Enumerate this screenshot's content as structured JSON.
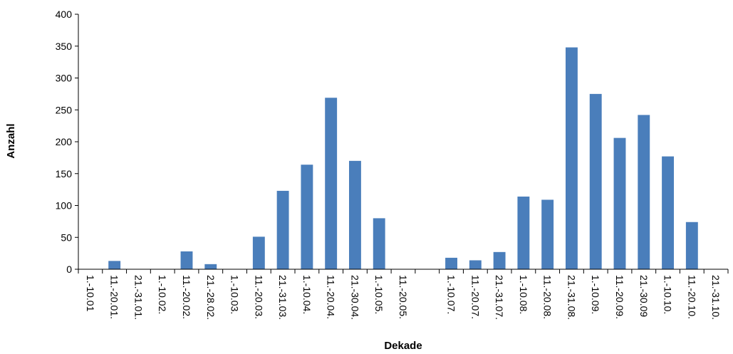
{
  "chart_data": {
    "type": "bar",
    "xlabel": "Dekade",
    "ylabel": "Anzahl",
    "ylim": [
      0,
      400
    ],
    "yticks": [
      0,
      50,
      100,
      150,
      200,
      250,
      300,
      350,
      400
    ],
    "grid": false,
    "legend": "none",
    "bar_color": "#4a7ebb",
    "categories": [
      "1.-10.01",
      "11.-20.01.",
      "21.-31.01.",
      "1.-10.02.",
      "11.-20.02.",
      "21.-28.02.",
      "1.-10.03.",
      "11.-20.03.",
      "21.-31.03.",
      "1.-10.04.",
      "11.-20.04.",
      "21.-30.04.",
      "1.-10.05.",
      "11.-20.05.",
      "",
      "1.-10.07.",
      "11.-20.07.",
      "21.-31.07.",
      "1.-10.08.",
      "11.-20.08.",
      "21.-31.08.",
      "1.-10.09.",
      "11.-20.09.",
      "21.-30.09",
      "1.-10.10.",
      "11.-20.10.",
      "21.-31.10."
    ],
    "values": [
      0,
      13,
      0,
      0,
      28,
      8,
      0,
      51,
      123,
      164,
      269,
      170,
      80,
      0,
      0,
      18,
      14,
      27,
      114,
      109,
      348,
      275,
      206,
      242,
      177,
      74,
      0
    ]
  }
}
